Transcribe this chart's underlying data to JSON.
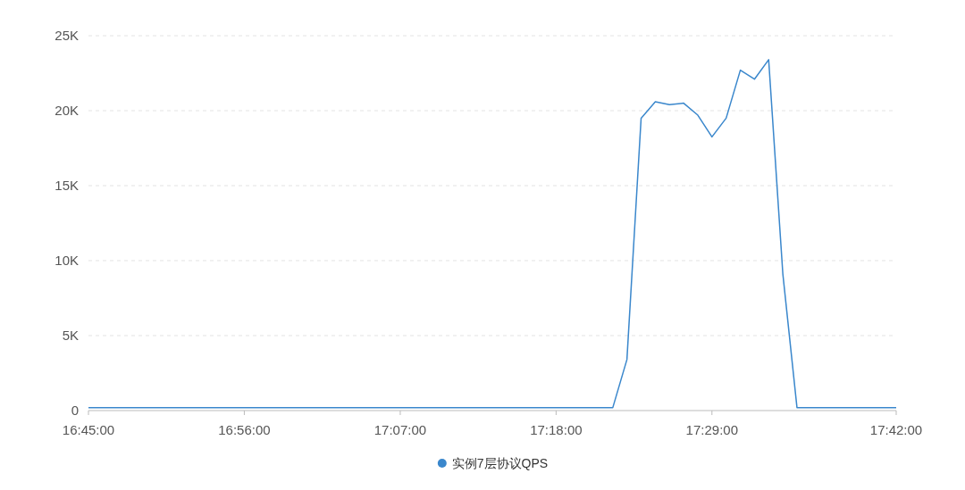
{
  "chart_data": {
    "type": "line",
    "x": [
      16.75,
      16.9333,
      17.1167,
      17.3,
      17.3667,
      17.3833,
      17.4,
      17.4167,
      17.4333,
      17.45,
      17.4667,
      17.4833,
      17.5,
      17.5167,
      17.5333,
      17.55,
      17.5667,
      17.5833,
      17.7
    ],
    "series": [
      {
        "name": "实例7层协议QPS",
        "color": "#3a87cc",
        "values": [
          200,
          200,
          200,
          200,
          200,
          3400,
          19500,
          20600,
          20400,
          20500,
          19700,
          18250,
          19500,
          22700,
          22100,
          23400,
          9100,
          200,
          200
        ]
      }
    ],
    "xlim": [
      16.75,
      17.7
    ],
    "xticks": [
      {
        "value": 16.75,
        "label": "16:45:00"
      },
      {
        "value": 16.9333,
        "label": "16:56:00"
      },
      {
        "value": 17.1167,
        "label": "17:07:00"
      },
      {
        "value": 17.3,
        "label": "17:18:00"
      },
      {
        "value": 17.4833,
        "label": "17:29:00"
      },
      {
        "value": 17.7,
        "label": "17:42:00"
      }
    ],
    "ylim": [
      0,
      25000
    ],
    "yticks": [
      {
        "value": 0,
        "label": "0"
      },
      {
        "value": 5000,
        "label": "5K"
      },
      {
        "value": 10000,
        "label": "10K"
      },
      {
        "value": 15000,
        "label": "15K"
      },
      {
        "value": 20000,
        "label": "20K"
      },
      {
        "value": 25000,
        "label": "25K"
      }
    ],
    "grid": "y",
    "legend": "bottom"
  }
}
